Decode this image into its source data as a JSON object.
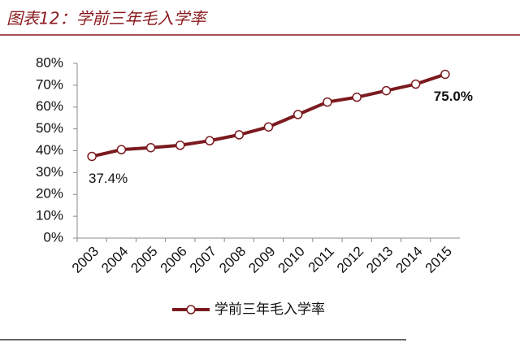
{
  "chart_data": {
    "type": "line",
    "title": "图表12：学前三年毛入学率",
    "categories": [
      "2003",
      "2004",
      "2005",
      "2006",
      "2007",
      "2008",
      "2009",
      "2010",
      "2011",
      "2012",
      "2013",
      "2014",
      "2015"
    ],
    "series": [
      {
        "name": "学前三年毛入学率",
        "color": "#7b1a1e",
        "values": [
          37.4,
          40.5,
          41.4,
          42.5,
          44.6,
          47.3,
          50.9,
          56.6,
          62.3,
          64.5,
          67.5,
          70.5,
          75.0
        ],
        "value_labels": [
          "37.4%",
          null,
          null,
          null,
          null,
          null,
          null,
          null,
          null,
          null,
          null,
          null,
          "75.0%"
        ]
      }
    ],
    "ylim": [
      0,
      80
    ],
    "yticks": [
      {
        "value": 0,
        "label": "0%"
      },
      {
        "value": 10,
        "label": "10%"
      },
      {
        "value": 20,
        "label": "20%"
      },
      {
        "value": 30,
        "label": "30%"
      },
      {
        "value": 40,
        "label": "40%"
      },
      {
        "value": 50,
        "label": "50%"
      },
      {
        "value": 60,
        "label": "60%"
      },
      {
        "value": 70,
        "label": "70%"
      },
      {
        "value": 80,
        "label": "80%"
      }
    ],
    "grid": false,
    "legend": "bottom"
  }
}
